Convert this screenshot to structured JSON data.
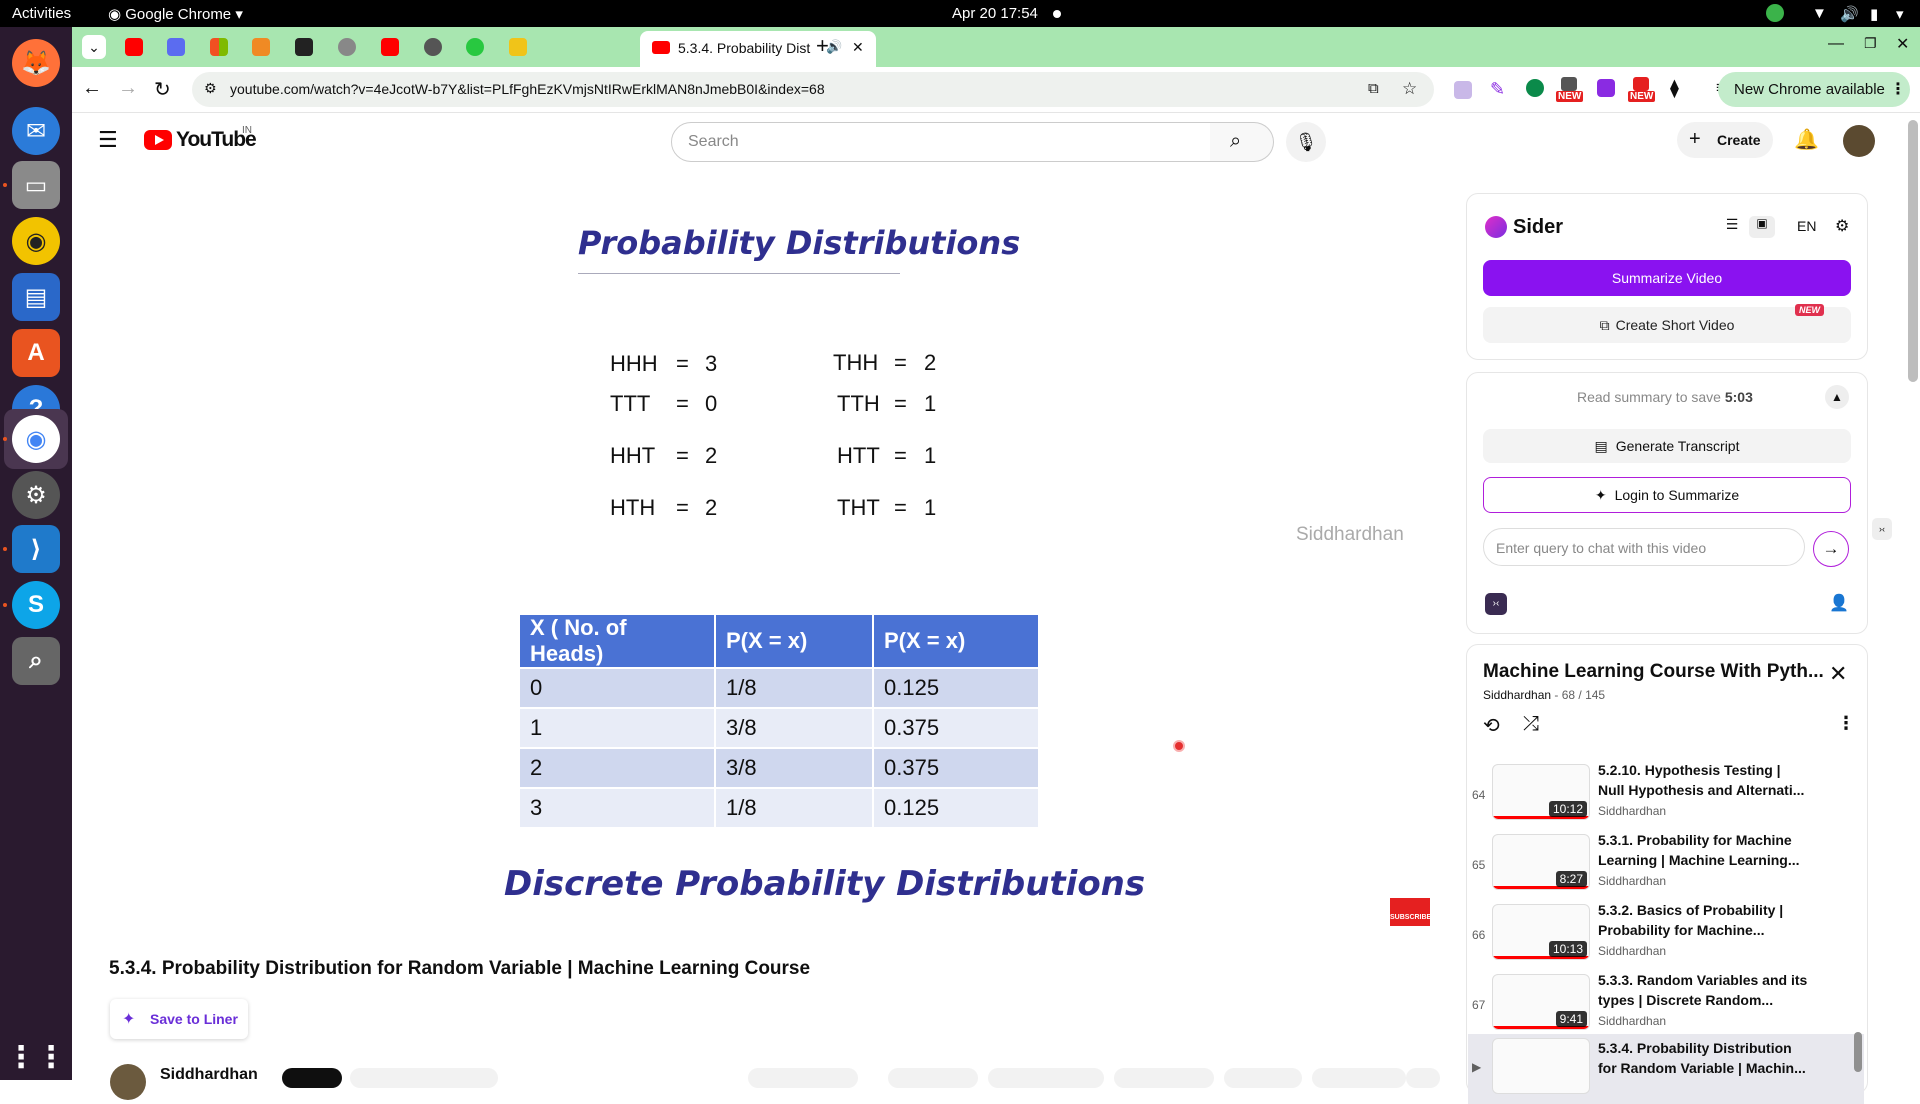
{
  "system": {
    "activities": "Activities",
    "app_name": "Google Chrome",
    "datetime": "Apr 20  17:54"
  },
  "browser": {
    "active_tab_title": "5.3.4. Probability Dist",
    "url": "youtube.com/watch?v=4eJcotW-b7Y&list=PLfFghEzKVmjsNtIRwErklMAN8nJmebB0I&index=68",
    "new_chrome_label": "New Chrome available",
    "new_badge_1": "NEW",
    "new_badge_2": "NEW"
  },
  "youtube": {
    "logo_text": "YouTube",
    "region": "IN",
    "search_placeholder": "Search",
    "create_label": "Create"
  },
  "slide": {
    "title": "Probability Distributions",
    "outcomes_left": [
      {
        "seq": "HHH",
        "eq": "=",
        "val": "3"
      },
      {
        "seq": "TTT",
        "eq": "=",
        "val": "0"
      },
      {
        "seq": "HHT",
        "eq": "=",
        "val": "2"
      },
      {
        "seq": "HTH",
        "eq": "=",
        "val": "2"
      }
    ],
    "outcomes_right": [
      {
        "seq": "THH",
        "eq": "=",
        "val": "2"
      },
      {
        "seq": "TTH",
        "eq": "=",
        "val": "1"
      },
      {
        "seq": "HTT",
        "eq": "=",
        "val": "1"
      },
      {
        "seq": "THT",
        "eq": "=",
        "val": "1"
      }
    ],
    "watermark": "Siddhardhan",
    "table": {
      "headers": [
        "X ( No. of Heads)",
        "P(X = x)",
        "P(X = x)"
      ],
      "rows": [
        [
          "0",
          "1/8",
          "0.125"
        ],
        [
          "1",
          "3/8",
          "0.375"
        ],
        [
          "2",
          "3/8",
          "0.375"
        ],
        [
          "3",
          "1/8",
          "0.125"
        ]
      ]
    },
    "footer_title": "Discrete Probability Distributions",
    "subscribe_label": "SUBSCRIBE"
  },
  "video": {
    "title": "5.3.4. Probability Distribution for Random Variable | Machine Learning Course",
    "save_to_liner": "Save to Liner",
    "channel": "Siddhardhan"
  },
  "sider": {
    "brand": "Sider",
    "lang": "EN",
    "summarize_video": "Summarize Video",
    "create_short_video": "Create Short Video",
    "new_tag": "NEW",
    "read_summary_prefix": "Read summary to save",
    "read_summary_time": "5:03",
    "generate_transcript": "Generate Transcript",
    "login_to_summarize": "Login to Summarize",
    "chat_placeholder": "Enter query to chat with this video"
  },
  "playlist": {
    "title": "Machine Learning Course With Pyth...",
    "channel": "Siddhardhan",
    "position": "- 68 / 145",
    "items": [
      {
        "index": "64",
        "title": "5.2.10. Hypothesis Testing | Null Hypothesis and Alternati...",
        "channel": "Siddhardhan",
        "duration": "10:12"
      },
      {
        "index": "65",
        "title": "5.3.1. Probability for Machine Learning | Machine Learning...",
        "channel": "Siddhardhan",
        "duration": "8:27"
      },
      {
        "index": "66",
        "title": "5.3.2. Basics of Probability | Probability for Machine...",
        "channel": "Siddhardhan",
        "duration": "10:13"
      },
      {
        "index": "67",
        "title": "5.3.3. Random Variables and its types | Discrete Random...",
        "channel": "Siddhardhan",
        "duration": "9:41"
      },
      {
        "index": "▶",
        "title": "5.3.4. Probability Distribution for Random Variable | Machin...",
        "channel": "",
        "duration": ""
      }
    ]
  }
}
